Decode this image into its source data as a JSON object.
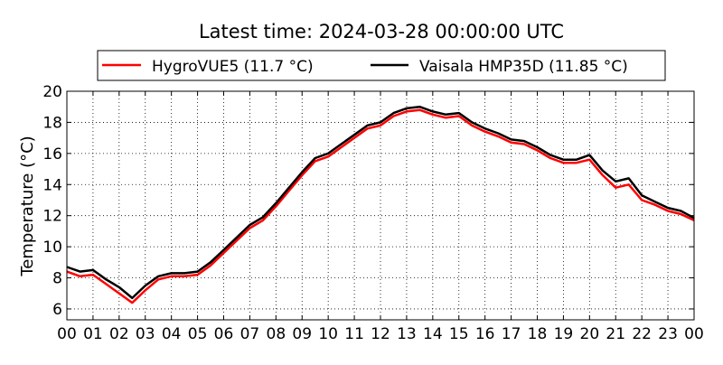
{
  "chart_data": {
    "type": "line",
    "title": "Latest time: 2024-03-28 00:00:00 UTC",
    "ylabel": "Temperature (°C)",
    "xlabel": "",
    "xlim": [
      0,
      24
    ],
    "ylim": [
      5.3,
      20
    ],
    "x_tick_values": [
      0,
      1,
      2,
      3,
      4,
      5,
      6,
      7,
      8,
      9,
      10,
      11,
      12,
      13,
      14,
      15,
      16,
      17,
      18,
      19,
      20,
      21,
      22,
      23,
      24
    ],
    "x_tick_labels": [
      "00",
      "01",
      "02",
      "03",
      "04",
      "05",
      "06",
      "07",
      "08",
      "09",
      "10",
      "11",
      "12",
      "13",
      "14",
      "15",
      "16",
      "17",
      "18",
      "19",
      "20",
      "21",
      "22",
      "23",
      "00"
    ],
    "y_ticks": [
      6,
      8,
      10,
      12,
      14,
      16,
      18,
      20
    ],
    "grid": true,
    "legend_position": "top-center",
    "x": [
      0,
      0.5,
      1,
      1.5,
      2,
      2.5,
      3,
      3.5,
      4,
      4.5,
      5,
      5.5,
      6,
      6.5,
      7,
      7.5,
      8,
      8.5,
      9,
      9.5,
      10,
      10.5,
      11,
      11.5,
      12,
      12.5,
      13,
      13.5,
      14,
      14.5,
      15,
      15.5,
      16,
      16.5,
      17,
      17.5,
      18,
      18.5,
      19,
      19.5,
      20,
      20.5,
      21,
      21.5,
      22,
      22.5,
      23,
      23.5,
      24
    ],
    "series": [
      {
        "name": "HygroVUE5 (11.7 °C)",
        "color": "#ff0000",
        "values": [
          8.4,
          8.1,
          8.2,
          7.6,
          7.0,
          6.4,
          7.2,
          7.9,
          8.1,
          8.1,
          8.2,
          8.8,
          9.6,
          10.4,
          11.2,
          11.7,
          12.6,
          13.6,
          14.6,
          15.5,
          15.8,
          16.4,
          17.0,
          17.6,
          17.8,
          18.4,
          18.7,
          18.8,
          18.5,
          18.3,
          18.4,
          17.8,
          17.4,
          17.1,
          16.7,
          16.6,
          16.2,
          15.7,
          15.4,
          15.4,
          15.6,
          14.6,
          13.8,
          14.0,
          13.0,
          12.7,
          12.3,
          12.1,
          11.7
        ]
      },
      {
        "name": "Vaisala HMP35D (11.85 °C)",
        "color": "#000000",
        "values": [
          8.7,
          8.4,
          8.5,
          7.9,
          7.4,
          6.7,
          7.5,
          8.1,
          8.3,
          8.3,
          8.4,
          9.0,
          9.8,
          10.6,
          11.4,
          11.9,
          12.8,
          13.8,
          14.8,
          15.7,
          16.0,
          16.6,
          17.2,
          17.8,
          18.0,
          18.6,
          18.9,
          19.0,
          18.7,
          18.5,
          18.6,
          18.0,
          17.6,
          17.3,
          16.9,
          16.8,
          16.4,
          15.9,
          15.6,
          15.6,
          15.9,
          14.9,
          14.2,
          14.4,
          13.3,
          12.9,
          12.5,
          12.3,
          11.85
        ]
      }
    ]
  }
}
